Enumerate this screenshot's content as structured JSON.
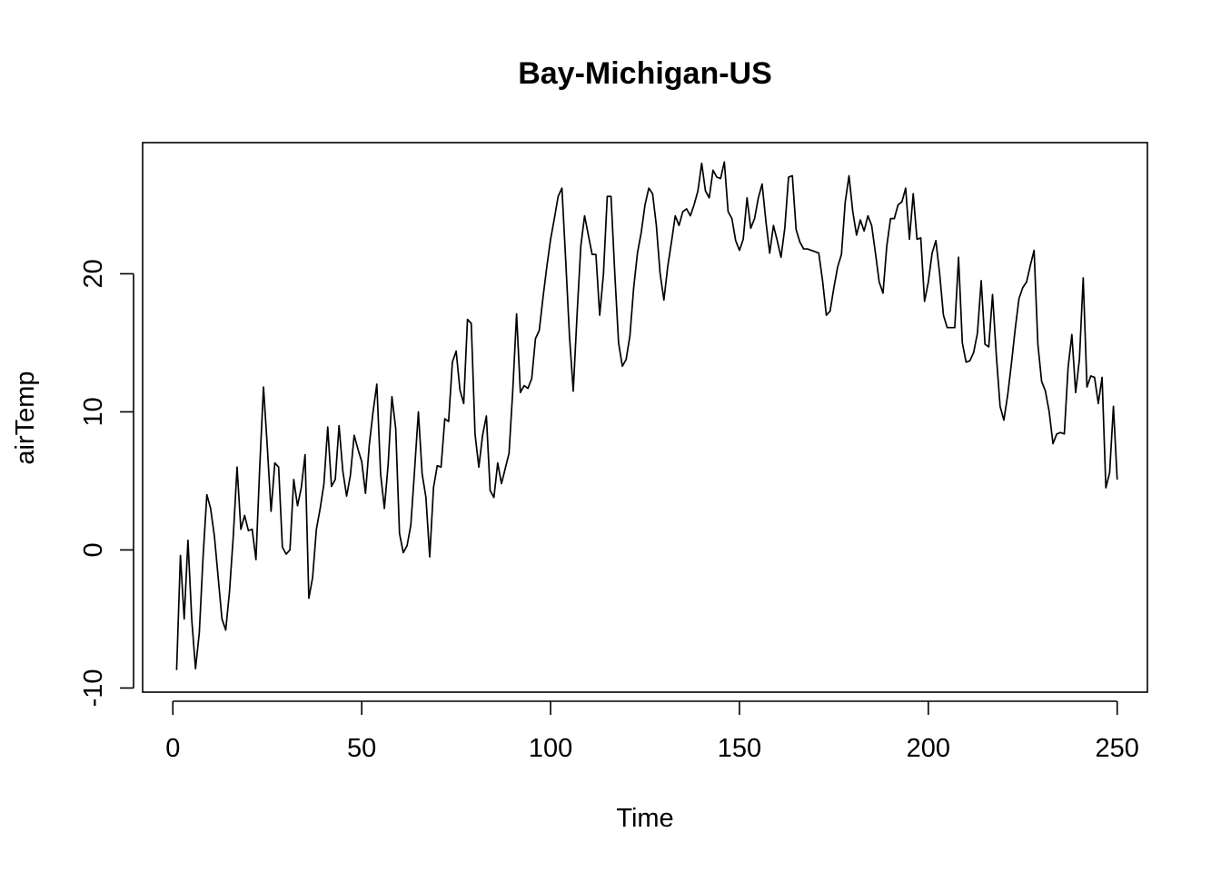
{
  "chart_data": {
    "type": "line",
    "title": "Bay-Michigan-US",
    "xlabel": "Time",
    "ylabel": "airTemp",
    "xlim": [
      -8,
      258
    ],
    "ylim": [
      -10.3,
      29.5
    ],
    "xticks": [
      0,
      50,
      100,
      150,
      200,
      250
    ],
    "yticks": [
      -10,
      0,
      10,
      20
    ],
    "grid": false,
    "line_color": "#000000",
    "series": [
      {
        "x_start": 1,
        "values": [
          -8.7,
          -0.4,
          -5.0,
          0.7,
          -5.0,
          -8.6,
          -6.0,
          -0.5,
          4.0,
          3.0,
          1.0,
          -2.0,
          -5.0,
          -5.8,
          -3.0,
          1.0,
          6.0,
          1.5,
          2.5,
          1.4,
          1.5,
          -0.7,
          6.0,
          11.8,
          7.5,
          2.8,
          6.3,
          6.0,
          0.2,
          -0.3,
          0.0,
          5.1,
          3.2,
          4.5,
          6.9,
          -3.5,
          -2.0,
          1.5,
          3.0,
          4.8,
          8.9,
          4.6,
          5.1,
          9.0,
          5.7,
          3.9,
          5.4,
          8.3,
          7.3,
          6.4,
          4.1,
          7.6,
          10.0,
          12.0,
          5.5,
          3.0,
          6.2,
          11.1,
          8.8,
          1.2,
          -0.2,
          0.3,
          1.8,
          5.8,
          10.0,
          5.5,
          3.8,
          -0.5,
          4.5,
          6.1,
          6.0,
          9.5,
          9.3,
          13.6,
          14.4,
          11.6,
          10.6,
          16.7,
          16.4,
          8.4,
          6.0,
          8.3,
          9.7,
          4.3,
          3.8,
          6.3,
          4.8,
          5.9,
          7.0,
          11.6,
          17.1,
          11.4,
          11.9,
          11.7,
          12.4,
          15.3,
          15.9,
          18.3,
          20.5,
          22.5,
          24.0,
          25.6,
          26.2,
          21.0,
          15.5,
          11.5,
          17.0,
          22.0,
          24.2,
          22.8,
          21.4,
          21.4,
          17.0,
          20.0,
          25.6,
          25.6,
          20.0,
          15.0,
          13.3,
          13.8,
          15.5,
          19.0,
          21.5,
          23.0,
          25.0,
          26.2,
          25.8,
          23.5,
          20.0,
          18.1,
          20.5,
          22.3,
          24.2,
          23.5,
          24.5,
          24.7,
          24.2,
          25.0,
          26.0,
          28.0,
          26.0,
          25.5,
          27.5,
          27.0,
          26.9,
          28.1,
          24.5,
          24.0,
          22.4,
          21.7,
          22.5,
          25.5,
          23.3,
          24.0,
          25.5,
          26.5,
          23.8,
          21.5,
          23.5,
          22.4,
          21.2,
          23.3,
          27.0,
          27.1,
          23.2,
          22.3,
          21.8,
          21.8,
          21.7,
          21.6,
          21.5,
          19.5,
          17.0,
          17.3,
          19.0,
          20.5,
          21.4,
          25.2,
          27.1,
          24.5,
          22.8,
          23.9,
          23.1,
          24.2,
          23.5,
          21.5,
          19.4,
          18.6,
          22.0,
          24.0,
          24.0,
          25.0,
          25.2,
          26.2,
          22.5,
          25.8,
          22.5,
          22.6,
          18.0,
          19.4,
          21.5,
          22.4,
          20.0,
          17.0,
          16.1,
          16.1,
          16.1,
          21.2,
          15.0,
          13.6,
          13.7,
          14.3,
          15.7,
          19.5,
          14.9,
          14.7,
          18.5,
          14.1,
          10.4,
          9.4,
          11.2,
          13.5,
          16.0,
          18.2,
          19.0,
          19.4,
          20.6,
          21.7,
          14.9,
          12.2,
          11.5,
          10.0,
          7.7,
          8.4,
          8.5,
          8.4,
          13.2,
          15.6,
          11.4,
          13.8,
          19.7,
          11.8,
          12.6,
          12.5,
          10.6,
          12.5,
          4.5,
          5.6,
          10.4,
          5.1
        ]
      }
    ]
  }
}
